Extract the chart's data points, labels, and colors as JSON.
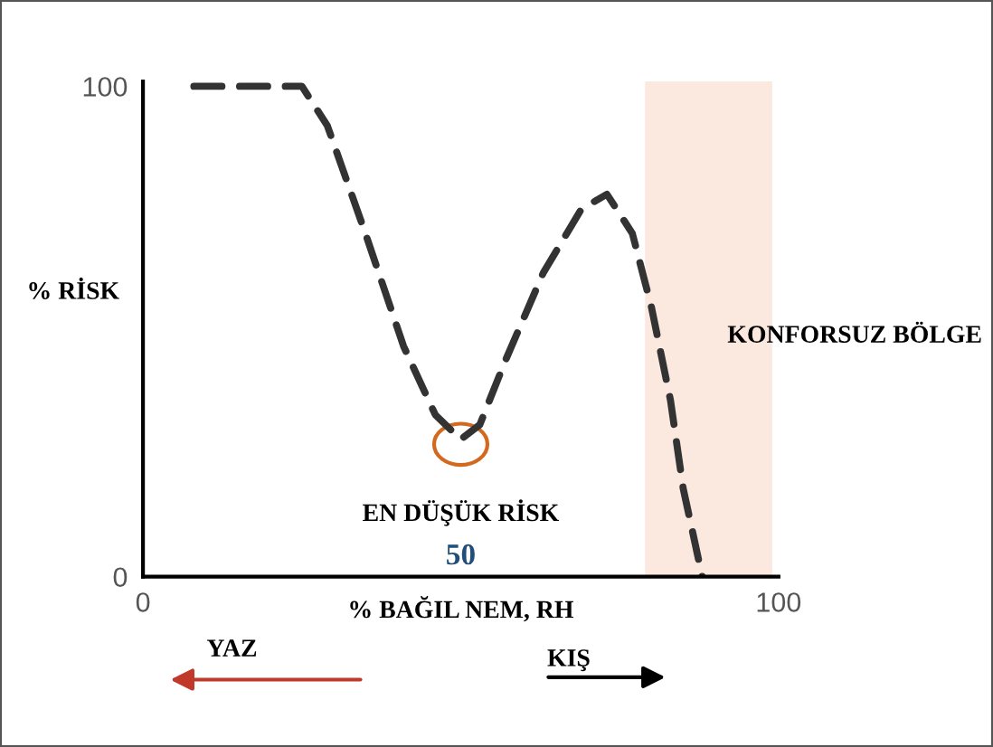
{
  "chart_data": {
    "type": "line",
    "xlabel": "% BAĞIL NEM, RH",
    "ylabel": "% RİSK",
    "x": [
      8,
      25,
      29,
      35,
      41,
      46,
      50,
      53,
      57,
      63,
      69,
      73,
      77,
      80,
      83,
      85,
      88
    ],
    "series": [
      {
        "color": "#333333",
        "values": [
          100,
          100,
          92,
          70,
          47,
          33,
          28,
          31,
          44,
          62,
          75,
          78,
          70,
          55,
          36,
          18,
          0
        ]
      }
    ],
    "xlim": [
      0,
      100
    ],
    "ylim": [
      0,
      101
    ],
    "xticks": [
      0,
      100
    ],
    "yticks": [
      0,
      100
    ],
    "line_style": "dashed",
    "marker": "none",
    "grid": false,
    "legend": false,
    "bands": [
      {
        "axis": "x",
        "from": 79,
        "to": 99,
        "color": "#fbe9df"
      }
    ],
    "annotations": [
      "KONFORSUZ BÖLGE",
      "EN DÜŞÜK RİSK",
      "50",
      "YAZ",
      "KIŞ"
    ]
  }
}
